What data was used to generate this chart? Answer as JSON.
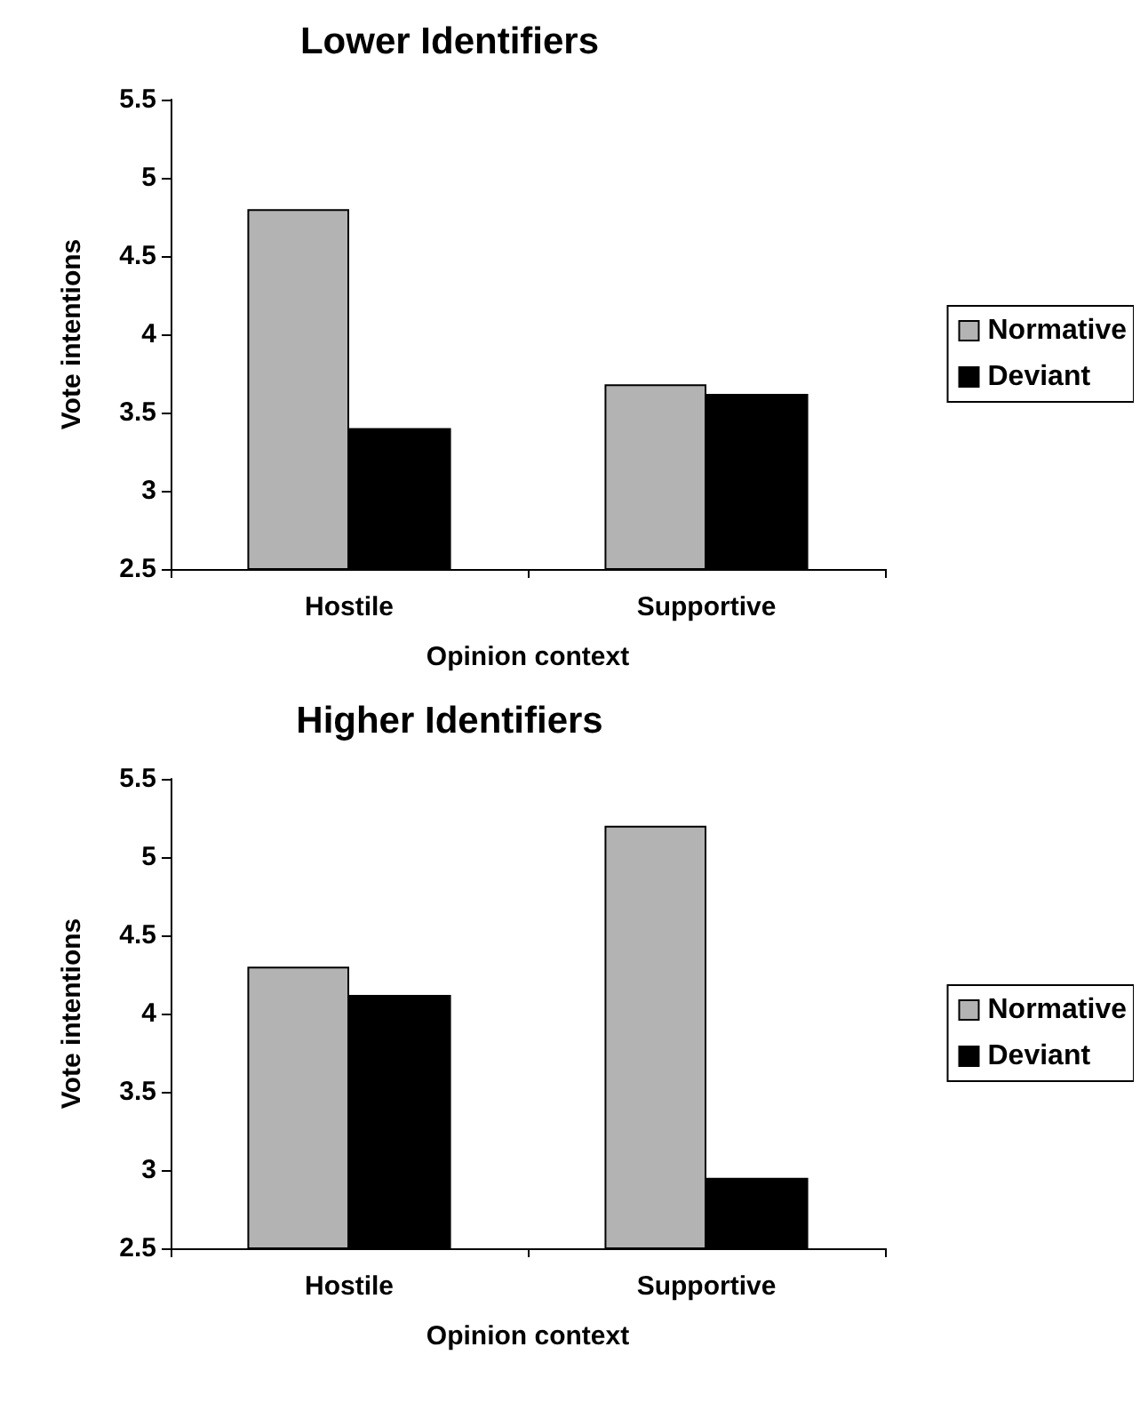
{
  "chart_data": [
    {
      "type": "bar",
      "title": "Lower Identifiers",
      "xlabel": "Opinion context",
      "ylabel": "Vote intentions",
      "categories": [
        "Hostile",
        "Supportive"
      ],
      "series": [
        {
          "name": "Normative",
          "color": "#b3b3b3",
          "values": [
            4.8,
            3.68
          ]
        },
        {
          "name": "Deviant",
          "color": "#000000",
          "values": [
            3.4,
            3.62
          ]
        }
      ],
      "ylim": [
        2.5,
        5.5
      ],
      "yticks": [
        2.5,
        3,
        3.5,
        4,
        4.5,
        5,
        5.5
      ],
      "grid": false,
      "legend": "right"
    },
    {
      "type": "bar",
      "title": "Higher Identifiers",
      "xlabel": "Opinion context",
      "ylabel": "Vote intentions",
      "categories": [
        "Hostile",
        "Supportive"
      ],
      "series": [
        {
          "name": "Normative",
          "color": "#b3b3b3",
          "values": [
            4.3,
            5.2
          ]
        },
        {
          "name": "Deviant",
          "color": "#000000",
          "values": [
            4.12,
            2.95
          ]
        }
      ],
      "ylim": [
        2.5,
        5.5
      ],
      "yticks": [
        2.5,
        3,
        3.5,
        4,
        4.5,
        5,
        5.5
      ],
      "grid": false,
      "legend": "right"
    }
  ]
}
